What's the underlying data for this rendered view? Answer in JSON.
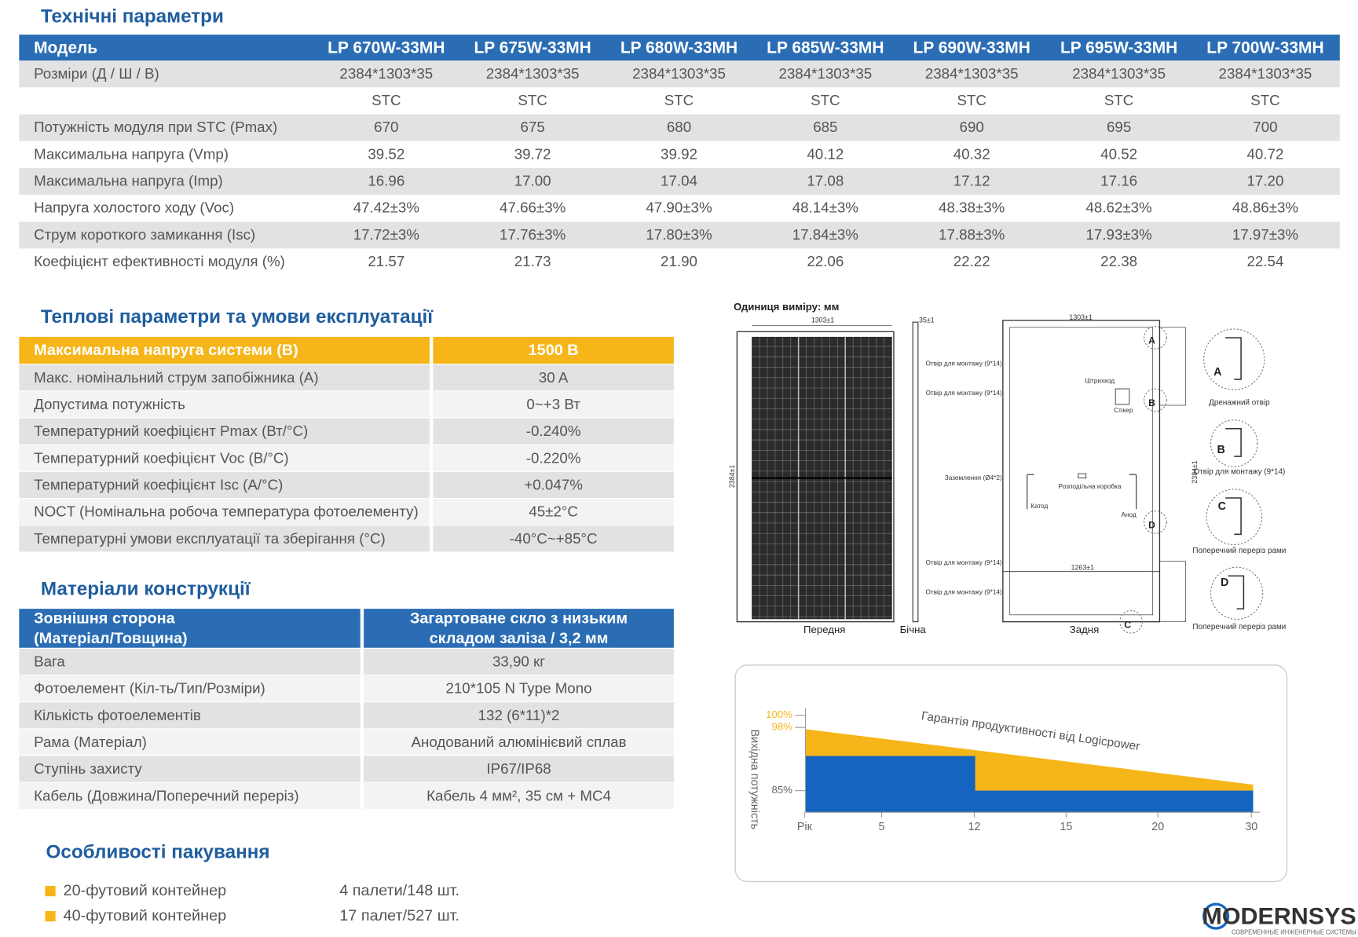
{
  "tech": {
    "title": "Технічні параметри",
    "header": [
      "Модель",
      "LP 670W-33MH",
      "LP 675W-33MH",
      "LP 680W-33MH",
      "LP 685W-33MH",
      "LP 690W-33MH",
      "LP 695W-33MH",
      "LP 700W-33MH"
    ],
    "rows": [
      [
        "Розміри (Д / Ш / В)",
        "2384*1303*35",
        "2384*1303*35",
        "2384*1303*35",
        "2384*1303*35",
        "2384*1303*35",
        "2384*1303*35",
        "2384*1303*35"
      ],
      [
        null,
        "STC",
        "STC",
        "STC",
        "STC",
        "STC",
        "STC",
        "STC"
      ],
      [
        "Потужність модуля при STC (Pmax)",
        "670",
        "675",
        "680",
        "685",
        "690",
        "695",
        "700"
      ],
      [
        "Максимальна напруга (Vmp)",
        "39.52",
        "39.72",
        "39.92",
        "40.12",
        "40.32",
        "40.52",
        "40.72"
      ],
      [
        "Максимальна напруга (Imp)",
        "16.96",
        "17.00",
        "17.04",
        "17.08",
        "17.12",
        "17.16",
        "17.20"
      ],
      [
        "Напруга холостого ходу (Voc)",
        "47.42±3%",
        "47.66±3%",
        "47.90±3%",
        "48.14±3%",
        "48.38±3%",
        "48.62±3%",
        "48.86±3%"
      ],
      [
        "Струм короткого замикання (Isc)",
        "17.72±3%",
        "17.76±3%",
        "17.80±3%",
        "17.84±3%",
        "17.88±3%",
        "17.93±3%",
        "17.97±3%"
      ],
      [
        "Коефіцієнт ефективності модуля (%)",
        "21.57",
        "21.73",
        "21.90",
        "22.06",
        "22.22",
        "22.38",
        "22.54"
      ]
    ]
  },
  "thermal": {
    "title": "Теплові параметри та умови експлуатації",
    "header": [
      "Максимальна напруга системи (В)",
      "1500 В"
    ],
    "rows": [
      [
        "Макс. номінальний струм запобіжника (A)",
        "30 A"
      ],
      [
        "Допустима потужність",
        "0~+3 Вт"
      ],
      [
        "Температурний коефіцієнт Pmax (Вт/°C)",
        "-0.240%"
      ],
      [
        "Температурний коефіцієнт Voc (В/°C)",
        "-0.220%"
      ],
      [
        "Температурний коефіцієнт Isc (A/°C)",
        "+0.047%"
      ],
      [
        "NOCT (Номінальна робоча температура фотоелементу)",
        "45±2°C"
      ],
      [
        "Температурні умови експлуатації та зберігання (°C)",
        "-40°C~+85°C"
      ]
    ]
  },
  "materials": {
    "title": "Матеріали конструкції",
    "header": [
      [
        "Зовнішня сторона",
        "(Матеріал/Товщина)"
      ],
      [
        "Загартоване скло з низьким",
        "складом заліза / 3,2 мм"
      ]
    ],
    "rows": [
      [
        "Вага",
        "33,90 кг"
      ],
      [
        "Фотоелемент (Кіл-ть/Тип/Розміри)",
        "210*105 N Type Mono"
      ],
      [
        "Кількість фотоелементів",
        "132 (6*11)*2"
      ],
      [
        "Рама (Матеріал)",
        "Анодований алюмінієвий сплав"
      ],
      [
        "Ступінь захисту",
        "IP67/IP68"
      ],
      [
        "Кабель (Довжина/Поперечний переріз)",
        "Кабель 4 мм², 35 см + MC4"
      ]
    ]
  },
  "packaging": {
    "title": "Особливості пакування",
    "items": [
      {
        "label": "20-футовий контейнер",
        "value": "4 палети/148 шт."
      },
      {
        "label": "40-футовий контейнер",
        "value": "17 палет/527 шт."
      }
    ]
  },
  "drawing": {
    "unit": "Одиниця виміру: мм",
    "views": [
      "Передня",
      "Бічна",
      "Задня"
    ],
    "dims": [
      "1303±1",
      "2384±1",
      "35±1",
      "1303±1",
      "1263±1",
      "2384±1"
    ],
    "notes": [
      "Отвір для монтажу (9*14)",
      "Отвір для монтажу (9*14)",
      "Штрихкод",
      "Стікер",
      "Заземлення (Ø4*2)",
      "Розподільна коробка",
      "Катод",
      "Анод",
      "Отвір для монтажу (9*14)",
      "Отвір для монтажу (9*14)"
    ],
    "details": [
      {
        "letter": "A",
        "caption": "Дренажний отвір"
      },
      {
        "letter": "B",
        "caption": "Отвір для монтажу (9*14)"
      },
      {
        "letter": "C",
        "caption": "Поперечний переріз рами"
      },
      {
        "letter": "D",
        "caption": "Поперечний переріз рами"
      }
    ]
  },
  "warranty": {
    "title": "Гарантія продуктивності від Logicpower",
    "y_label": "Вихідна потужність",
    "y_ticks": [
      "100%",
      "98%",
      "85%"
    ],
    "x_ticks": [
      "Рік",
      "5",
      "12",
      "15",
      "20",
      "30"
    ]
  },
  "logo": {
    "name": "MODERNSYS",
    "tagline": "СОВРЕМЕННЫЕ ИНЖЕНЕРНЫЕ СИСТЕМЫ"
  }
}
